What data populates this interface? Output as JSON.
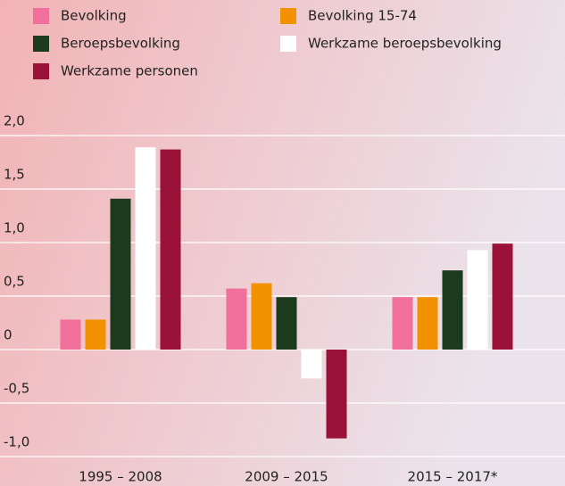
{
  "chart_data": {
    "type": "bar",
    "categories": [
      "1995 – 2008",
      "2009 – 2015",
      "2015 – 2017*"
    ],
    "series": [
      {
        "name": "Bevolking",
        "color": "#f06f9b",
        "values": [
          0.28,
          0.57,
          0.49
        ]
      },
      {
        "name": "Bevolking 15-74",
        "color": "#f39200",
        "values": [
          0.28,
          0.62,
          0.49
        ]
      },
      {
        "name": "Beroepsbevolking",
        "color": "#1b3a1e",
        "values": [
          1.41,
          0.49,
          0.74
        ]
      },
      {
        "name": "Werkzame beroepsbevolking",
        "color": "#ffffff",
        "values": [
          1.89,
          -0.27,
          0.93
        ]
      },
      {
        "name": "Werkzame personen",
        "color": "#9b1238",
        "values": [
          1.87,
          -0.83,
          0.99
        ]
      }
    ],
    "ylim": [
      -1.2,
      2.0
    ],
    "yticks": [
      {
        "value": 2.0,
        "label": "2,0"
      },
      {
        "value": 1.5,
        "label": "1,5"
      },
      {
        "value": 1.0,
        "label": "1,0"
      },
      {
        "value": 0.5,
        "label": "0,5"
      },
      0,
      {
        "value": -0.5,
        "label": "-0,5"
      },
      {
        "value": -1.0,
        "label": "-1,0"
      }
    ],
    "grid": true
  }
}
